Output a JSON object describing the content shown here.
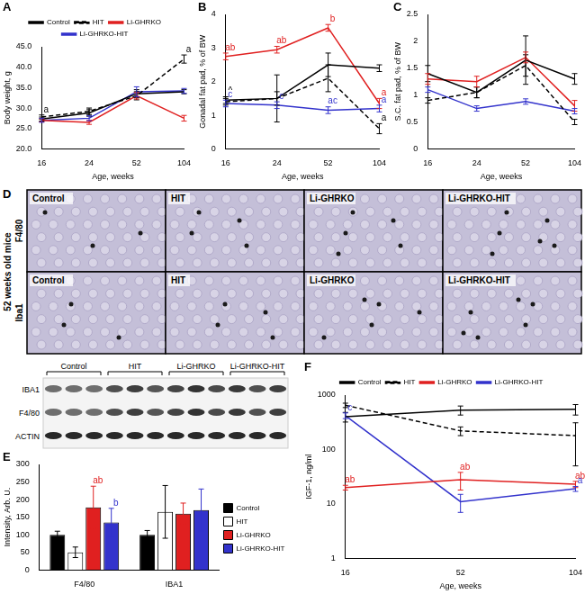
{
  "chart_data": [
    {
      "panel": "A",
      "type": "line",
      "y_label": "Body weight, g",
      "x_label": "Age, weeks",
      "categories": [
        "16",
        "24",
        "52",
        "104"
      ],
      "ylim": [
        20,
        45
      ],
      "yticks": [
        {
          "value": 20,
          "label": "20.0"
        },
        {
          "value": 25,
          "label": "25.0"
        },
        {
          "value": 30,
          "label": "30.0"
        },
        {
          "value": 35,
          "label": "35.0"
        },
        {
          "value": 40,
          "label": "40.0"
        },
        {
          "value": 45,
          "label": "45.0"
        }
      ],
      "legend": "top",
      "series": [
        {
          "name": "Control",
          "color": "#000000",
          "line_style": "solid",
          "values": [
            27.3,
            28.8,
            33.5,
            34.0
          ],
          "errors": [
            0.5,
            0.8,
            1.0,
            0.5
          ],
          "annotations": [
            null,
            null,
            null,
            null
          ]
        },
        {
          "name": "HIT",
          "color": "#000000",
          "line_style": "dashed",
          "values": [
            27.8,
            29.2,
            33.0,
            42.0
          ],
          "errors": [
            0.5,
            0.8,
            1.0,
            1.0
          ],
          "annotations": [
            "a",
            null,
            null,
            "a"
          ]
        },
        {
          "name": "Li-GHRKO",
          "color": "#e02020",
          "line_style": "solid",
          "values": [
            27.0,
            26.5,
            33.0,
            27.5
          ],
          "errors": [
            0.4,
            0.5,
            0.8,
            0.7
          ],
          "annotations": [
            null,
            null,
            null,
            null
          ]
        },
        {
          "name": "Li-GHRKO-HIT",
          "color": "#3333cc",
          "line_style": "solid",
          "values": [
            27.0,
            27.5,
            34.0,
            34.2
          ],
          "errors": [
            0.5,
            0.6,
            1.2,
            0.6
          ],
          "annotations": [
            null,
            null,
            null,
            null
          ]
        }
      ]
    },
    {
      "panel": "B",
      "type": "line",
      "y_label": "Gonadal fat pad, % of BW",
      "x_label": "Age, weeks",
      "categories": [
        "16",
        "24",
        "52",
        "104"
      ],
      "ylim": [
        0,
        4
      ],
      "yticks": [
        0,
        1,
        2,
        3,
        4
      ],
      "series": [
        {
          "name": "Control",
          "color": "#000000",
          "line_style": "solid",
          "values": [
            1.45,
            1.5,
            2.5,
            2.4
          ],
          "errors": [
            0.1,
            0.2,
            0.35,
            0.1
          ],
          "annotations": [
            "^",
            null,
            null,
            null
          ]
        },
        {
          "name": "HIT",
          "color": "#000000",
          "line_style": "dashed",
          "values": [
            1.4,
            1.5,
            2.1,
            0.6
          ],
          "errors": [
            0.1,
            0.7,
            0.4,
            0.15
          ],
          "annotations": [
            null,
            null,
            null,
            "a"
          ]
        },
        {
          "name": "Li-GHRKO",
          "color": "#e02020",
          "line_style": "solid",
          "values": [
            2.75,
            2.95,
            3.6,
            1.35
          ],
          "errors": [
            0.1,
            0.1,
            0.1,
            0.15
          ],
          "annotations": [
            "ab",
            "ab",
            "b",
            "a"
          ]
        },
        {
          "name": "Li-GHRKO-HIT",
          "color": "#3333cc",
          "line_style": "solid",
          "values": [
            1.35,
            1.3,
            1.15,
            1.2
          ],
          "errors": [
            0.1,
            0.1,
            0.1,
            0.1
          ],
          "annotations": [
            "c",
            "c",
            "ac",
            "a"
          ]
        }
      ]
    },
    {
      "panel": "C",
      "type": "line",
      "y_label": "S.C. fat pad, % of BW",
      "x_label": "Age, weeks",
      "categories": [
        "16",
        "24",
        "52",
        "104"
      ],
      "ylim": [
        0,
        2.5
      ],
      "yticks": [
        0,
        0.5,
        1,
        1.5,
        2,
        2.5
      ],
      "series": [
        {
          "name": "Control",
          "color": "#000000",
          "line_style": "solid",
          "values": [
            1.4,
            1.05,
            1.65,
            1.3
          ],
          "errors": [
            0.15,
            0.1,
            0.45,
            0.1
          ]
        },
        {
          "name": "HIT",
          "color": "#000000",
          "line_style": "dashed",
          "values": [
            0.9,
            1.05,
            1.55,
            0.5
          ],
          "errors": [
            0.05,
            0.1,
            0.2,
            0.05
          ]
        },
        {
          "name": "Li-GHRKO",
          "color": "#e02020",
          "line_style": "solid",
          "values": [
            1.3,
            1.25,
            1.7,
            0.8
          ],
          "errors": [
            0.1,
            0.1,
            0.1,
            0.1
          ]
        },
        {
          "name": "Li-GHRKO-HIT",
          "color": "#3333cc",
          "line_style": "solid",
          "values": [
            1.1,
            0.75,
            0.88,
            0.7
          ],
          "errors": [
            0.05,
            0.05,
            0.05,
            0.05
          ]
        }
      ]
    },
    {
      "panel": "E",
      "type": "bar",
      "y_label": "Intensity, Arb. U.",
      "categories": [
        "F4/80",
        "IBA1"
      ],
      "ylim": [
        0,
        300
      ],
      "yticks": [
        0,
        50,
        100,
        150,
        200,
        250,
        300
      ],
      "legend": "right",
      "series": [
        {
          "name": "Control",
          "color": "#000000",
          "values": [
            100,
            100
          ],
          "errors": [
            10,
            12
          ],
          "annotations": [
            null,
            null
          ]
        },
        {
          "name": "HIT",
          "color": "#ffffff",
          "values": [
            50,
            165
          ],
          "errors": [
            15,
            75
          ],
          "annotations": [
            null,
            null
          ]
        },
        {
          "name": "Li-GHRKO",
          "color": "#e02020",
          "values": [
            178,
            160
          ],
          "errors": [
            60,
            30
          ],
          "annotations": [
            "ab",
            null
          ]
        },
        {
          "name": "Li-GHRKO-HIT",
          "color": "#3333cc",
          "values": [
            135,
            170
          ],
          "errors": [
            40,
            60
          ],
          "annotations": [
            "b",
            null
          ]
        }
      ]
    },
    {
      "panel": "F",
      "type": "line",
      "y_label": "IGF-1, ng/ml",
      "x_label": "Age, weeks",
      "log": "y",
      "categories": [
        "16",
        "52",
        "104"
      ],
      "ylim": [
        1,
        1000
      ],
      "yticks": [
        1,
        10,
        100,
        1000
      ],
      "legend": "top",
      "series": [
        {
          "name": "Control",
          "color": "#000000",
          "line_style": "solid",
          "values": [
            400,
            530,
            550
          ],
          "errors": [
            80,
            100,
            120
          ],
          "annotations": [
            null,
            null,
            null
          ]
        },
        {
          "name": "HIT",
          "color": "#000000",
          "line_style": "dashed",
          "values": [
            650,
            220,
            180
          ],
          "errors": [
            60,
            40,
            130
          ],
          "annotations": [
            null,
            null,
            null
          ]
        },
        {
          "name": "Li-GHRKO",
          "color": "#e02020",
          "line_style": "solid",
          "values": [
            20,
            28,
            23
          ],
          "errors": [
            2,
            10,
            3
          ],
          "annotations": [
            "ab",
            "ab",
            "ab"
          ]
        },
        {
          "name": "Li-GHRKO-HIT",
          "color": "#3333cc",
          "line_style": "solid",
          "values": [
            420,
            11,
            19
          ],
          "errors": [
            50,
            4,
            2
          ],
          "annotations": [
            "c",
            null,
            "a"
          ]
        }
      ]
    }
  ],
  "micrographs": {
    "panel": "D",
    "side_label": "52 weeks old mice",
    "columns": [
      "Control",
      "HIT",
      "Li-GHRKO",
      "Li-GHRKO-HIT"
    ],
    "rows": [
      "F4/80",
      "Iba1"
    ]
  },
  "blot": {
    "panel": "E",
    "groups": [
      "Control",
      "HIT",
      "Li-GHRKO",
      "Li-GHRKO-HIT"
    ],
    "bands": [
      "IBA1",
      "F4/80",
      "ACTIN"
    ]
  }
}
